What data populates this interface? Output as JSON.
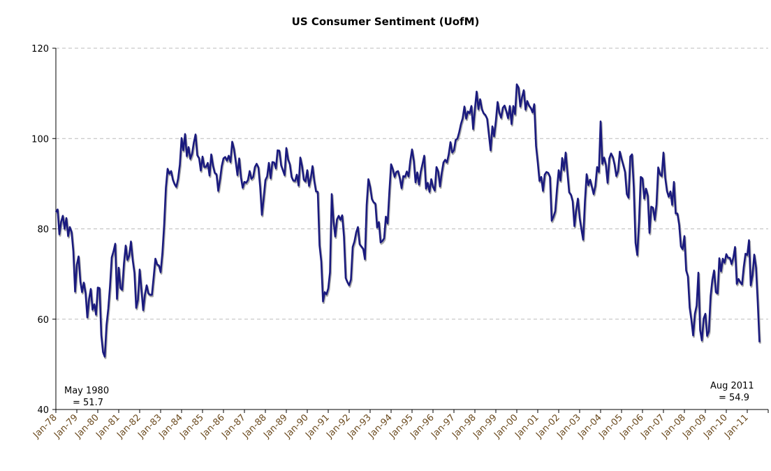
{
  "chart_data": {
    "type": "line",
    "title": "US Consumer Sentiment (UofM)",
    "xlabel": "",
    "ylabel": "",
    "ylim": [
      40,
      120
    ],
    "y_ticks": [
      40,
      60,
      80,
      100,
      120
    ],
    "grid": "horizontal dashed",
    "x_start": "1978-01",
    "x_frequency": "monthly",
    "x_tick_labels": [
      "Jan-78",
      "Jan-79",
      "Jan-80",
      "Jan-81",
      "Jan-82",
      "Jan-83",
      "Jan-84",
      "Jan-85",
      "Jan-86",
      "Jan-87",
      "Jan-88",
      "Jan-89",
      "Jan-90",
      "Jan-91",
      "Jan-92",
      "Jan-93",
      "Jan-94",
      "Jan-95",
      "Jan-96",
      "Jan-97",
      "Jan-98",
      "Jan-99",
      "Jan-00",
      "Jan-01",
      "Jan-02",
      "Jan-03",
      "Jan-04",
      "Jan-05",
      "Jan-06",
      "Jan-07",
      "Jan-08",
      "Jan-09",
      "Jan-10",
      "Jan-11"
    ],
    "line_color": "#1a1a7e",
    "tick_label_color": "#6b4a1e",
    "values": [
      83.7,
      84.3,
      78.8,
      81.6,
      82.9,
      80.0,
      82.4,
      78.4,
      80.4,
      79.3,
      75.0,
      66.1,
      72.1,
      73.9,
      68.4,
      66.0,
      68.1,
      65.8,
      60.4,
      64.5,
      66.7,
      62.1,
      63.3,
      61.0,
      67.0,
      66.9,
      56.5,
      52.7,
      51.7,
      58.7,
      62.3,
      67.3,
      73.7,
      75.0,
      76.7,
      64.5,
      71.4,
      66.9,
      66.5,
      72.4,
      76.3,
      73.1,
      74.1,
      77.2,
      73.1,
      70.3,
      62.5,
      64.3,
      71.0,
      66.5,
      62.0,
      65.5,
      67.5,
      65.7,
      65.4,
      65.4,
      69.3,
      73.4,
      72.1,
      71.9,
      70.4,
      74.6,
      80.8,
      89.1,
      93.3,
      92.2,
      92.8,
      90.9,
      89.9,
      89.3,
      91.1,
      94.2,
      100.1,
      97.4,
      101.0,
      96.1,
      98.1,
      95.5,
      96.6,
      99.1,
      100.9,
      96.3,
      95.7,
      92.9,
      96.0,
      93.7,
      93.7,
      94.6,
      91.8,
      96.5,
      94.0,
      92.4,
      92.1,
      88.4,
      90.9,
      93.9,
      95.6,
      95.9,
      95.1,
      96.2,
      94.8,
      99.3,
      97.7,
      94.9,
      91.9,
      95.6,
      91.4,
      89.1,
      90.4,
      90.2,
      90.8,
      92.8,
      91.1,
      91.5,
      93.7,
      94.4,
      93.6,
      89.3,
      83.1,
      86.8,
      90.8,
      91.6,
      94.6,
      91.2,
      94.8,
      94.7,
      93.4,
      97.4,
      97.3,
      94.1,
      93.0,
      91.9,
      97.9,
      95.4,
      94.3,
      91.5,
      90.7,
      90.6,
      92.0,
      89.6,
      95.8,
      93.9,
      90.9,
      90.5,
      93.0,
      89.5,
      91.3,
      93.9,
      90.6,
      88.3,
      88.2,
      76.4,
      72.8,
      63.9,
      66.0,
      65.5,
      66.8,
      70.4,
      87.7,
      81.8,
      78.3,
      82.1,
      82.9,
      82.0,
      83.0,
      78.3,
      69.1,
      68.2,
      67.5,
      68.8,
      76.0,
      77.2,
      79.2,
      80.4,
      76.6,
      76.1,
      75.6,
      73.3,
      85.3,
      91.0,
      89.3,
      86.6,
      85.9,
      85.6,
      80.3,
      81.5,
      77.0,
      77.3,
      77.9,
      82.7,
      81.2,
      88.2,
      94.3,
      93.2,
      91.5,
      92.6,
      92.8,
      91.2,
      89.0,
      91.7,
      91.5,
      92.7,
      91.6,
      95.1,
      97.6,
      95.1,
      90.3,
      92.5,
      89.8,
      92.7,
      94.4,
      96.2,
      88.9,
      90.2,
      88.2,
      91.0,
      89.3,
      88.5,
      93.7,
      92.7,
      89.4,
      92.4,
      94.7,
      95.3,
      94.7,
      96.5,
      99.2,
      96.9,
      97.4,
      99.7,
      100.0,
      101.4,
      103.2,
      104.5,
      107.1,
      104.4,
      106.0,
      105.6,
      107.2,
      102.1,
      106.6,
      110.4,
      106.5,
      108.7,
      106.5,
      105.6,
      105.2,
      104.4,
      100.9,
      97.4,
      102.7,
      100.5,
      103.9,
      108.1,
      105.7,
      104.6,
      106.8,
      107.3,
      106.0,
      104.5,
      107.2,
      103.2,
      107.2,
      105.4,
      112.0,
      111.3,
      107.1,
      109.2,
      110.7,
      106.4,
      108.3,
      107.3,
      106.8,
      105.8,
      107.6,
      98.4,
      94.7,
      90.6,
      91.5,
      88.4,
      92.0,
      92.6,
      92.4,
      91.5,
      81.8,
      82.7,
      83.9,
      88.8,
      93.0,
      90.7,
      95.7,
      93.0,
      96.9,
      92.4,
      88.1,
      87.6,
      86.1,
      80.6,
      84.2,
      86.7,
      82.4,
      79.9,
      77.6,
      86.0,
      92.1,
      89.7,
      90.9,
      89.3,
      87.7,
      89.6,
      93.7,
      92.6,
      103.8,
      94.4,
      95.8,
      94.2,
      90.2,
      95.6,
      96.7,
      95.9,
      94.2,
      91.7,
      92.8,
      97.1,
      95.5,
      94.1,
      92.6,
      87.7,
      86.9,
      96.0,
      96.5,
      89.1,
      76.9,
      74.2,
      81.6,
      91.5,
      91.2,
      86.7,
      88.9,
      87.4,
      79.1,
      84.9,
      84.7,
      82.0,
      85.4,
      93.6,
      92.1,
      91.7,
      96.9,
      91.3,
      88.4,
      87.1,
      88.3,
      85.3,
      90.4,
      83.4,
      83.4,
      80.9,
      76.1,
      75.5,
      78.4,
      70.8,
      69.5,
      62.6,
      59.8,
      56.4,
      61.2,
      63.0,
      70.3,
      57.6,
      55.3,
      60.1,
      61.2,
      56.3,
      57.3,
      65.1,
      68.7,
      70.8,
      66.0,
      65.7,
      73.5,
      70.6,
      73.4,
      72.5,
      74.4,
      73.6,
      73.6,
      72.2,
      73.6,
      76.0,
      67.8,
      68.9,
      68.2,
      67.7,
      71.6,
      74.5,
      74.2,
      77.5,
      67.5,
      69.8,
      74.3,
      71.5,
      63.7,
      54.9
    ],
    "annotations": [
      {
        "line1": "May 1980",
        "line2": "= 51.7"
      },
      {
        "line1": "Aug 2011",
        "line2": "= 54.9"
      }
    ]
  }
}
